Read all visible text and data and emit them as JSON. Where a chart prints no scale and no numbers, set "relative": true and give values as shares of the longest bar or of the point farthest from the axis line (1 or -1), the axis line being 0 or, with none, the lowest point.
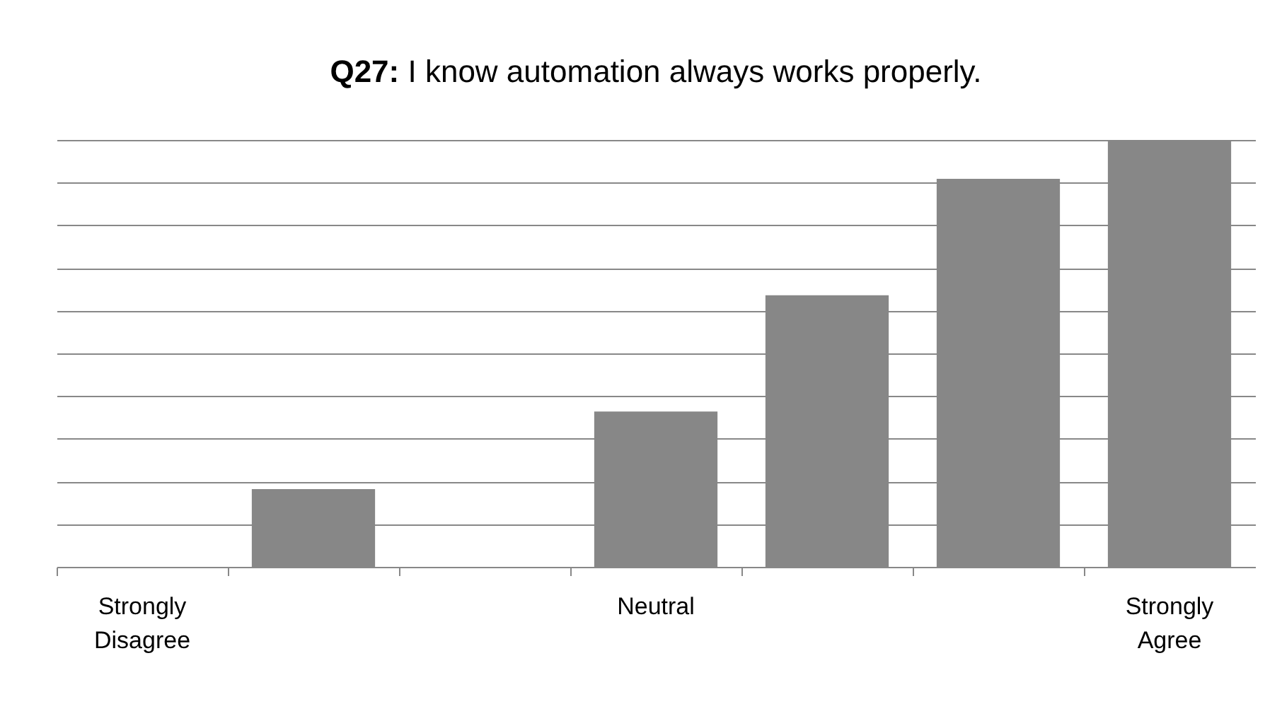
{
  "chart_data": {
    "type": "bar",
    "title": "Q27: I know automation always works properly.",
    "categories": [
      "Strongly Disagree",
      null,
      null,
      "Neutral",
      null,
      null,
      "Strongly Agree"
    ],
    "values": [
      0,
      0.182,
      0,
      0.364,
      0.636,
      0.909,
      1
    ],
    "color": "#878787",
    "relative": true,
    "grid": "y"
  }
}
